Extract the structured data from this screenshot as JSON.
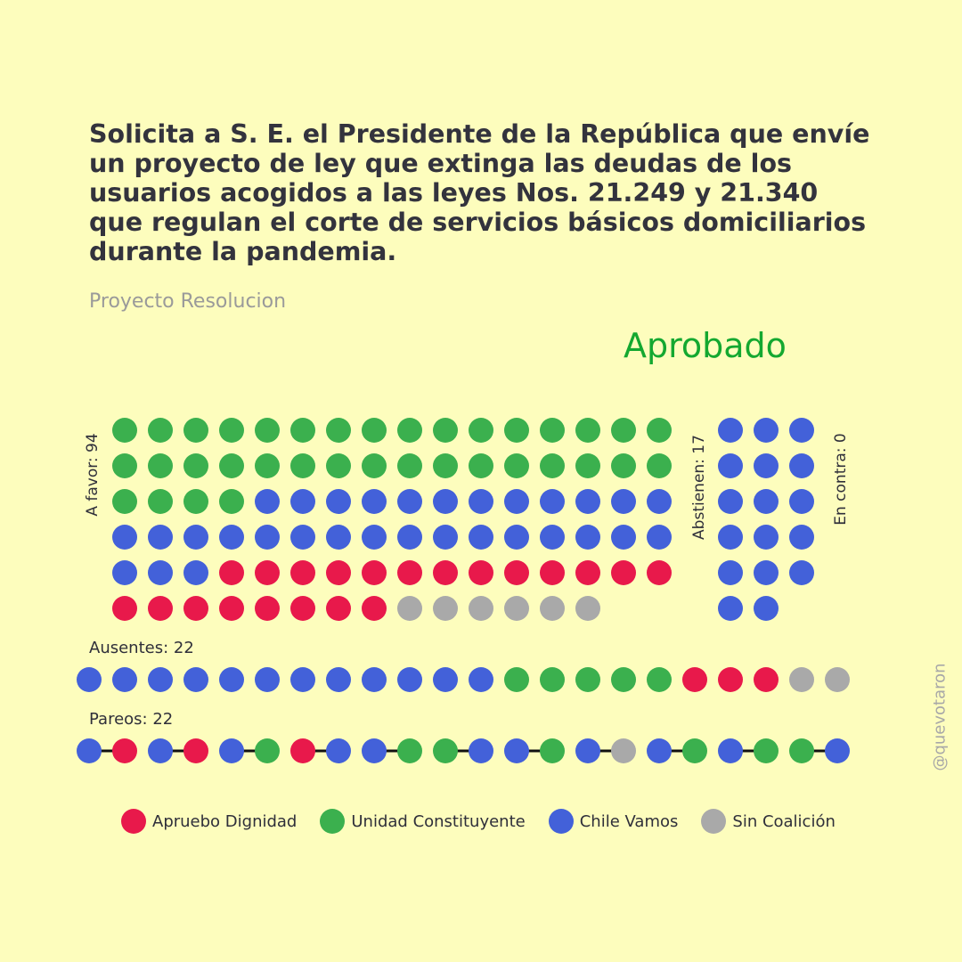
{
  "title": "Solicita a S. E. el Presidente de la República que envíe un proyecto de ley que extinga las deudas de los usuarios acogidos a las leyes Nos. 21.249 y 21.340 que regulan el corte de servicios básicos domiciliarios durante la pandemia.",
  "subtitle": "Proyecto Resolucion",
  "status": "Aprobado",
  "watermark": "@quevotaron",
  "colors": {
    "AD": "#e8194b",
    "UC": "#3bb04e",
    "CV": "#4361d9",
    "SC": "#a9a9a9",
    "status": "#14a830",
    "background": "#fdfdbd"
  },
  "chart_data": {
    "type": "dot-matrix",
    "coalitions": [
      {
        "key": "AD",
        "name": "Apruebo Dignidad"
      },
      {
        "key": "UC",
        "name": "Unidad Constituyente"
      },
      {
        "key": "CV",
        "name": "Chile Vamos"
      },
      {
        "key": "SC",
        "name": "Sin Coalición"
      }
    ],
    "a_favor": {
      "label": "A favor: 94",
      "count": 94,
      "rows": [
        [
          "UC",
          "UC",
          "UC",
          "UC",
          "UC",
          "UC",
          "UC",
          "UC",
          "UC",
          "UC",
          "UC",
          "UC",
          "UC",
          "UC",
          "UC",
          "UC"
        ],
        [
          "UC",
          "UC",
          "UC",
          "UC",
          "UC",
          "UC",
          "UC",
          "UC",
          "UC",
          "UC",
          "UC",
          "UC",
          "UC",
          "UC",
          "UC",
          "UC"
        ],
        [
          "UC",
          "UC",
          "UC",
          "UC",
          "CV",
          "CV",
          "CV",
          "CV",
          "CV",
          "CV",
          "CV",
          "CV",
          "CV",
          "CV",
          "CV",
          "CV"
        ],
        [
          "CV",
          "CV",
          "CV",
          "CV",
          "CV",
          "CV",
          "CV",
          "CV",
          "CV",
          "CV",
          "CV",
          "CV",
          "CV",
          "CV",
          "CV",
          "CV"
        ],
        [
          "CV",
          "CV",
          "CV",
          "AD",
          "AD",
          "AD",
          "AD",
          "AD",
          "AD",
          "AD",
          "AD",
          "AD",
          "AD",
          "AD",
          "AD",
          "AD"
        ],
        [
          "AD",
          "AD",
          "AD",
          "AD",
          "AD",
          "AD",
          "AD",
          "AD",
          "SC",
          "SC",
          "SC",
          "SC",
          "SC",
          "SC"
        ]
      ]
    },
    "abstienen": {
      "label": "Abstienen: 17",
      "count": 17,
      "rows": [
        [
          "CV",
          "CV",
          "CV"
        ],
        [
          "CV",
          "CV",
          "CV"
        ],
        [
          "CV",
          "CV",
          "CV"
        ],
        [
          "CV",
          "CV",
          "CV"
        ],
        [
          "CV",
          "CV",
          "CV"
        ],
        [
          "CV",
          "CV"
        ]
      ]
    },
    "en_contra": {
      "label": "En contra: 0",
      "count": 0,
      "rows": []
    },
    "ausentes": {
      "label": "Ausentes: 22",
      "count": 22,
      "dots": [
        "CV",
        "CV",
        "CV",
        "CV",
        "CV",
        "CV",
        "CV",
        "CV",
        "CV",
        "CV",
        "CV",
        "CV",
        "UC",
        "UC",
        "UC",
        "UC",
        "UC",
        "AD",
        "AD",
        "AD",
        "SC",
        "SC"
      ]
    },
    "pareos": {
      "label": "Pareos: 22",
      "count": 22,
      "pairs": [
        [
          "CV",
          "AD"
        ],
        [
          "CV",
          "AD"
        ],
        [
          "CV",
          "UC"
        ],
        [
          "AD",
          "CV"
        ],
        [
          "CV",
          "UC"
        ],
        [
          "UC",
          "CV"
        ],
        [
          "CV",
          "UC"
        ],
        [
          "CV",
          "SC"
        ],
        [
          "CV",
          "UC"
        ],
        [
          "CV",
          "UC"
        ],
        [
          "UC",
          "CV"
        ]
      ]
    }
  }
}
